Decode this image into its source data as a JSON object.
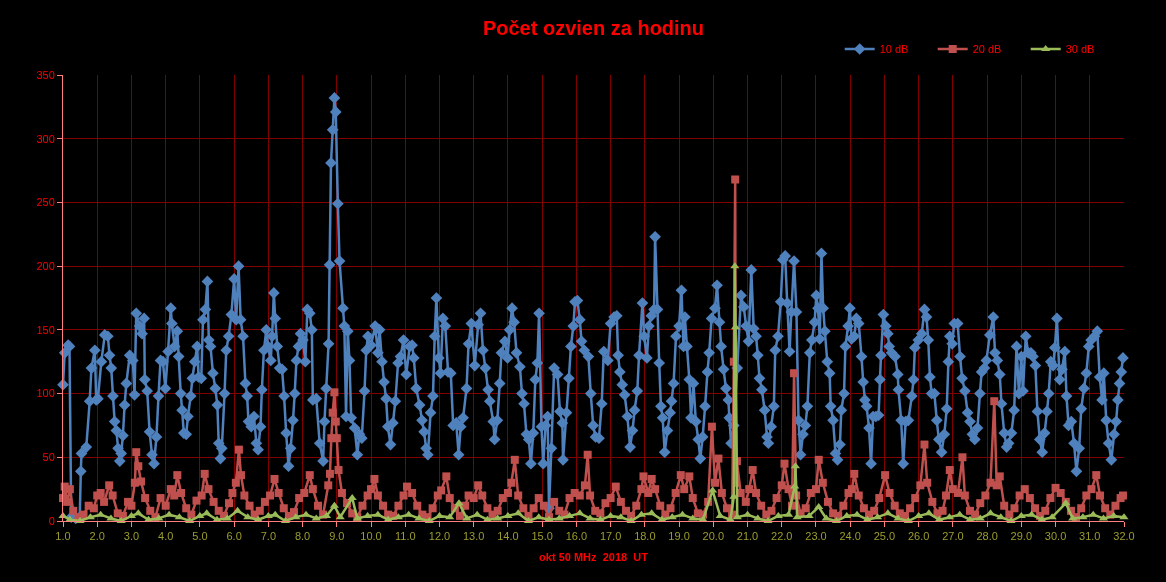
{
  "chart_data": {
    "type": "line",
    "title": "Počet ozvien za hodinu",
    "xlabel": "okt 50 MHz  2018  UT",
    "xlim": [
      1,
      32
    ],
    "xticks": [
      {
        "value": 1,
        "label": "1.0"
      },
      {
        "value": 2,
        "label": "2.0"
      },
      {
        "value": 3,
        "label": "3.0"
      },
      {
        "value": 4,
        "label": "4.0"
      },
      {
        "value": 5,
        "label": "5.0"
      },
      {
        "value": 6,
        "label": "6.0"
      },
      {
        "value": 7,
        "label": "7.0"
      },
      {
        "value": 8,
        "label": "8.0"
      },
      {
        "value": 9,
        "label": "9.0"
      },
      {
        "value": 10,
        "label": "10.0"
      },
      {
        "value": 11,
        "label": "11.0"
      },
      {
        "value": 12,
        "label": "12.0"
      },
      {
        "value": 13,
        "label": "13.0"
      },
      {
        "value": 14,
        "label": "14.0"
      },
      {
        "value": 15,
        "label": "15.0"
      },
      {
        "value": 16,
        "label": "16.0"
      },
      {
        "value": 17,
        "label": "17.0"
      },
      {
        "value": 18,
        "label": "18.0"
      },
      {
        "value": 19,
        "label": "19.0"
      },
      {
        "value": 20,
        "label": "20.0"
      },
      {
        "value": 21,
        "label": "21.0"
      },
      {
        "value": 22,
        "label": "22.0"
      },
      {
        "value": 23,
        "label": "23.0"
      },
      {
        "value": 24,
        "label": "24.0"
      },
      {
        "value": 25,
        "label": "25.0"
      },
      {
        "value": 26,
        "label": "26.0"
      },
      {
        "value": 27,
        "label": "27.0"
      },
      {
        "value": 28,
        "label": "28.0"
      },
      {
        "value": 29,
        "label": "29.0"
      },
      {
        "value": 30,
        "label": "30.0"
      },
      {
        "value": 31,
        "label": "31.0"
      },
      {
        "value": 32,
        "label": "32.0"
      }
    ],
    "ylim": [
      0,
      350
    ],
    "yticks": [
      0,
      50,
      100,
      150,
      200,
      250,
      300,
      350
    ],
    "grid": true,
    "legend": "top right",
    "line_style": "solid",
    "series": [
      {
        "name": "10 dB",
        "color": "#4f81bd",
        "marker": "diamond",
        "x": [
          1.0,
          1.05,
          1.15,
          1.19,
          1.24,
          1.37,
          1.49,
          1.52,
          1.54,
          1.68,
          1.78,
          1.83,
          1.93,
          1.97,
          2.02,
          2.12,
          2.22,
          2.31,
          2.36,
          2.41,
          2.46,
          2.51,
          2.56,
          2.61,
          2.66,
          2.7,
          2.75,
          2.8,
          2.85,
          2.95,
          3.04,
          3.09,
          3.14,
          3.24,
          3.31,
          3.37,
          3.39,
          3.46,
          3.53,
          3.6,
          3.66,
          3.73,
          3.79,
          3.85,
          3.92,
          3.99,
          4.07,
          4.15,
          4.18,
          4.26,
          4.34,
          4.38,
          4.44,
          4.48,
          4.53,
          4.6,
          4.65,
          4.73,
          4.78,
          4.85,
          4.92,
          4.96,
          5.04,
          5.09,
          5.16,
          5.22,
          5.26,
          5.31,
          5.38,
          5.45,
          5.51,
          5.55,
          5.6,
          5.64,
          5.72,
          5.77,
          5.84,
          5.92,
          6.0,
          6.06,
          6.13,
          6.19,
          6.26,
          6.33,
          6.38,
          6.42,
          6.5,
          6.58,
          6.65,
          6.7,
          6.77,
          6.81,
          6.87,
          6.94,
          6.99,
          7.07,
          7.11,
          7.16,
          7.2,
          7.26,
          7.33,
          7.4,
          7.46,
          7.52,
          7.59,
          7.65,
          7.72,
          7.77,
          7.82,
          7.88,
          7.94,
          8.01,
          8.08,
          8.14,
          8.21,
          8.27,
          8.3,
          8.4,
          8.5,
          8.6,
          8.64,
          8.69,
          8.76,
          8.79,
          8.83,
          8.88,
          8.93,
          8.97,
          9.03,
          9.08,
          9.18,
          9.22,
          9.27,
          9.32,
          9.37,
          9.42,
          9.52,
          9.6,
          9.66,
          9.73,
          9.81,
          9.86,
          9.91,
          10.0,
          10.12,
          10.2,
          10.25,
          10.32,
          10.38,
          10.44,
          10.49,
          10.57,
          10.64,
          10.71,
          10.79,
          10.86,
          10.95,
          11.03,
          11.13,
          11.2,
          11.25,
          11.32,
          11.42,
          11.49,
          11.55,
          11.61,
          11.66,
          11.74,
          11.81,
          11.86,
          11.91,
          11.98,
          12.03,
          12.1,
          12.17,
          12.25,
          12.33,
          12.4,
          12.49,
          12.56,
          12.62,
          12.69,
          12.79,
          12.85,
          12.93,
          13.03,
          13.13,
          13.2,
          13.27,
          13.34,
          13.42,
          13.47,
          13.57,
          13.61,
          13.69,
          13.76,
          13.81,
          13.91,
          13.99,
          14.05,
          14.12,
          14.18,
          14.25,
          14.35,
          14.41,
          14.47,
          14.54,
          14.61,
          14.67,
          14.74,
          14.8,
          14.86,
          14.91,
          14.98,
          15.03,
          15.1,
          15.16,
          15.2,
          15.27,
          15.35,
          15.45,
          15.52,
          15.59,
          15.61,
          15.71,
          15.78,
          15.84,
          15.91,
          15.96,
          16.03,
          16.1,
          16.15,
          16.23,
          16.35,
          16.42,
          16.49,
          16.56,
          16.66,
          16.74,
          16.8,
          16.92,
          17.0,
          17.1,
          17.18,
          17.22,
          17.27,
          17.34,
          17.41,
          17.49,
          17.57,
          17.64,
          17.7,
          17.78,
          17.83,
          17.93,
          17.98,
          18.06,
          18.12,
          18.19,
          18.27,
          18.3,
          18.37,
          18.42,
          18.47,
          18.52,
          18.58,
          18.66,
          18.74,
          18.78,
          18.84,
          18.91,
          19.0,
          19.07,
          19.13,
          19.17,
          19.23,
          19.3,
          19.35,
          19.42,
          19.49,
          19.56,
          19.62,
          19.69,
          19.76,
          19.83,
          19.88,
          19.95,
          20.05,
          20.11,
          20.18,
          20.23,
          20.3,
          20.37,
          20.44,
          20.47,
          20.52,
          20.6,
          20.7,
          20.81,
          20.89,
          20.96,
          21.03,
          21.11,
          21.18,
          21.25,
          21.3,
          21.35,
          21.42,
          21.5,
          21.57,
          21.61,
          21.69,
          21.77,
          21.81,
          21.89,
          21.97,
          22.03,
          22.1,
          22.16,
          22.23,
          22.28,
          22.36,
          22.43,
          22.49,
          22.55,
          22.62,
          22.69,
          22.75,
          22.82,
          22.88,
          22.96,
          23.01,
          23.06,
          23.11,
          23.16,
          23.21,
          23.26,
          23.33,
          23.4,
          23.43,
          23.5,
          23.57,
          23.63,
          23.7,
          23.74,
          23.82,
          23.86,
          23.94,
          23.99,
          24.04,
          24.12,
          24.18,
          24.25,
          24.33,
          24.38,
          24.43,
          24.48,
          24.55,
          24.61,
          24.67,
          24.75,
          24.83,
          24.87,
          24.9,
          24.97,
          25.04,
          25.1,
          25.14,
          25.21,
          25.31,
          25.39,
          25.41,
          25.49,
          25.55,
          25.62,
          25.7,
          25.8,
          25.85,
          25.89,
          25.99,
          26.09,
          26.17,
          26.23,
          26.28,
          26.33,
          26.38,
          26.46,
          26.53,
          26.59,
          26.67,
          26.75,
          26.82,
          26.87,
          26.91,
          26.98,
          27.04,
          27.14,
          27.21,
          27.27,
          27.35,
          27.43,
          27.5,
          27.57,
          27.64,
          27.72,
          27.79,
          27.84,
          27.92,
          27.98,
          28.08,
          28.18,
          28.23,
          28.3,
          28.37,
          28.42,
          28.5,
          28.57,
          28.63,
          28.71,
          28.79,
          28.86,
          28.93,
          29.0,
          29.05,
          29.13,
          29.2,
          29.28,
          29.34,
          29.41,
          29.47,
          29.54,
          29.61,
          29.68,
          29.75,
          29.8,
          29.86,
          29.93,
          29.98,
          30.04,
          30.12,
          30.19,
          30.27,
          30.32,
          30.38,
          30.46,
          30.54,
          30.61,
          30.69,
          30.75,
          30.83,
          30.9,
          30.97,
          31.04,
          31.14,
          31.22,
          31.29,
          31.36,
          31.41,
          31.48,
          31.55,
          31.63,
          31.71,
          31.77,
          31.82,
          31.87,
          31.92,
          31.97
        ],
        "values": [
          107,
          132,
          138,
          137,
          3,
          2,
          3,
          39,
          53,
          58,
          94,
          120,
          134,
          95,
          96,
          125,
          146,
          145,
          130,
          120,
          98,
          78,
          71,
          57,
          47,
          53,
          67,
          91,
          108,
          130,
          126,
          99,
          163,
          153,
          147,
          159,
          111,
          102,
          70,
          52,
          45,
          66,
          98,
          126,
          125,
          104,
          133,
          167,
          155,
          137,
          149,
          129,
          100,
          87,
          69,
          68,
          82,
          98,
          112,
          125,
          137,
          113,
          112,
          158,
          166,
          188,
          142,
          137,
          116,
          104,
          91,
          61,
          49,
          57,
          100,
          134,
          145,
          162,
          190,
          158,
          200,
          158,
          145,
          108,
          98,
          78,
          74,
          82,
          61,
          56,
          74,
          103,
          134,
          150,
          137,
          126,
          145,
          179,
          159,
          137,
          120,
          119,
          98,
          69,
          43,
          57,
          79,
          100,
          126,
          137,
          147,
          142,
          125,
          166,
          163,
          150,
          95,
          96,
          61,
          47,
          78,
          104,
          139,
          201,
          281,
          307,
          332,
          321,
          249,
          204,
          167,
          153,
          82,
          149,
          126,
          81,
          73,
          52,
          68,
          65,
          102,
          134,
          145,
          138,
          153,
          132,
          150,
          125,
          109,
          96,
          74,
          60,
          77,
          94,
          124,
          129,
          142,
          115,
          137,
          138,
          128,
          104,
          91,
          79,
          70,
          57,
          52,
          85,
          98,
          145,
          175,
          128,
          116,
          159,
          153,
          117,
          116,
          75,
          77,
          52,
          74,
          81,
          104,
          139,
          155,
          122,
          154,
          163,
          134,
          120,
          103,
          94,
          78,
          64,
          79,
          108,
          132,
          141,
          128,
          150,
          167,
          156,
          132,
          121,
          100,
          92,
          68,
          64,
          45,
          69,
          111,
          124,
          163,
          74,
          45,
          75,
          82,
          10,
          57,
          120,
          115,
          86,
          77,
          48,
          85,
          112,
          137,
          153,
          172,
          173,
          158,
          141,
          134,
          129,
          100,
          75,
          66,
          65,
          92,
          133,
          126,
          155,
          160,
          161,
          130,
          117,
          107,
          99,
          82,
          58,
          71,
          87,
          102,
          130,
          171,
          145,
          128,
          153,
          161,
          166,
          223,
          166,
          124,
          90,
          81,
          54,
          71,
          85,
          94,
          108,
          145,
          153,
          181,
          137,
          160,
          137,
          111,
          81,
          108,
          78,
          64,
          49,
          66,
          90,
          117,
          132,
          159,
          167,
          185,
          156,
          137,
          119,
          104,
          95,
          81,
          61,
          75,
          120,
          177,
          168,
          153,
          141,
          197,
          151,
          145,
          130,
          112,
          103,
          87,
          66,
          61,
          74,
          90,
          134,
          145,
          172,
          205,
          208,
          171,
          133,
          164,
          204,
          164,
          79,
          52,
          68,
          75,
          90,
          132,
          142,
          156,
          177,
          167,
          143,
          210,
          167,
          149,
          125,
          116,
          90,
          79,
          53,
          48,
          60,
          87,
          100,
          137,
          153,
          167,
          143,
          145,
          159,
          155,
          129,
          109,
          95,
          90,
          73,
          45,
          82,
          82,
          83,
          111,
          130,
          162,
          153,
          147,
          137,
          132,
          129,
          115,
          103,
          79,
          45,
          78,
          79,
          98,
          111,
          136,
          142,
          147,
          166,
          160,
          142,
          113,
          100,
          100,
          79,
          64,
          54,
          68,
          88,
          125,
          145,
          139,
          155,
          155,
          129,
          112,
          102,
          85,
          78,
          68,
          64,
          73,
          100,
          117,
          120,
          126,
          146,
          160,
          132,
          126,
          115,
          92,
          69,
          58,
          61,
          69,
          87,
          137,
          100,
          129,
          102,
          145,
          132,
          132,
          129,
          122,
          86,
          64,
          54,
          69,
          86,
          100,
          125,
          122,
          136,
          159,
          111,
          119,
          133,
          98,
          75,
          78,
          61,
          39,
          57,
          88,
          104,
          116,
          137,
          142,
          145,
          149,
          113,
          95,
          116,
          79,
          61,
          48,
          68,
          78,
          95,
          108,
          117,
          128
        ]
      },
      {
        "name": "20 dB",
        "color": "#c0504d",
        "marker": "square",
        "x": [
          1.0,
          1.05,
          1.12,
          1.2,
          1.3,
          1.45,
          1.6,
          1.75,
          1.9,
          2.0,
          2.1,
          2.2,
          2.35,
          2.45,
          2.6,
          2.75,
          2.9,
          3.0,
          3.1,
          3.14,
          3.2,
          3.28,
          3.4,
          3.55,
          3.7,
          3.85,
          4.0,
          4.15,
          4.25,
          4.34,
          4.45,
          4.6,
          4.75,
          4.9,
          5.05,
          5.14,
          5.25,
          5.4,
          5.55,
          5.7,
          5.85,
          5.95,
          6.05,
          6.14,
          6.2,
          6.3,
          6.45,
          6.6,
          6.75,
          6.9,
          7.05,
          7.18,
          7.3,
          7.45,
          7.6,
          7.75,
          7.9,
          8.05,
          8.21,
          8.3,
          8.45,
          8.6,
          8.75,
          8.8,
          8.84,
          8.88,
          8.93,
          8.97,
          9.0,
          9.05,
          9.15,
          9.3,
          9.45,
          9.6,
          9.75,
          9.9,
          10.0,
          10.1,
          10.2,
          10.35,
          10.5,
          10.65,
          10.8,
          10.95,
          11.05,
          11.2,
          11.35,
          11.5,
          11.65,
          11.8,
          11.95,
          12.05,
          12.2,
          12.3,
          12.45,
          12.6,
          12.75,
          12.85,
          13.0,
          13.13,
          13.25,
          13.4,
          13.55,
          13.7,
          13.85,
          14.0,
          14.1,
          14.2,
          14.3,
          14.45,
          14.6,
          14.75,
          14.9,
          15.05,
          15.2,
          15.35,
          15.5,
          15.65,
          15.8,
          15.95,
          16.1,
          16.25,
          16.33,
          16.4,
          16.55,
          16.7,
          16.85,
          17.0,
          17.15,
          17.3,
          17.45,
          17.6,
          17.75,
          17.9,
          17.96,
          18.1,
          18.2,
          18.3,
          18.45,
          18.6,
          18.75,
          18.9,
          19.05,
          19.15,
          19.3,
          19.4,
          19.55,
          19.7,
          19.85,
          19.96,
          20.05,
          20.15,
          20.25,
          20.4,
          20.55,
          20.6,
          20.64,
          20.66,
          20.69,
          20.8,
          20.95,
          21.05,
          21.15,
          21.25,
          21.4,
          21.55,
          21.7,
          21.85,
          22.0,
          22.08,
          22.2,
          22.3,
          22.36,
          22.42,
          22.55,
          22.7,
          22.85,
          23.0,
          23.08,
          23.2,
          23.35,
          23.5,
          23.65,
          23.8,
          23.95,
          24.05,
          24.12,
          24.25,
          24.4,
          24.55,
          24.7,
          24.85,
          25.02,
          25.15,
          25.3,
          25.45,
          25.6,
          25.75,
          25.9,
          26.05,
          26.17,
          26.25,
          26.4,
          26.55,
          26.7,
          26.8,
          26.91,
          27.0,
          27.15,
          27.28,
          27.35,
          27.5,
          27.65,
          27.8,
          27.95,
          28.1,
          28.21,
          28.28,
          28.37,
          28.5,
          28.65,
          28.8,
          28.95,
          29.1,
          29.25,
          29.4,
          29.55,
          29.7,
          29.85,
          30.0,
          30.15,
          30.3,
          30.45,
          30.6,
          30.75,
          30.9,
          31.05,
          31.19,
          31.3,
          31.45,
          31.6,
          31.75,
          31.9,
          31.97
        ],
        "values": [
          18,
          27,
          15,
          25,
          8,
          3,
          5,
          12,
          10,
          20,
          22,
          15,
          28,
          20,
          6,
          4,
          15,
          12,
          30,
          54,
          43,
          31,
          18,
          8,
          3,
          18,
          12,
          25,
          20,
          36,
          22,
          10,
          5,
          16,
          20,
          37,
          25,
          15,
          8,
          4,
          14,
          22,
          30,
          56,
          36,
          20,
          12,
          5,
          8,
          15,
          20,
          33,
          22,
          10,
          4,
          7,
          18,
          22,
          36,
          25,
          12,
          5,
          28,
          37,
          65,
          85,
          101,
          78,
          65,
          40,
          22,
          14,
          6,
          3,
          12,
          20,
          25,
          33,
          20,
          12,
          5,
          4,
          12,
          20,
          27,
          22,
          12,
          5,
          3,
          10,
          20,
          24,
          35,
          18,
          10,
          4,
          12,
          20,
          18,
          28,
          20,
          10,
          5,
          8,
          18,
          22,
          30,
          48,
          20,
          10,
          4,
          10,
          18,
          12,
          3,
          15,
          8,
          5,
          18,
          22,
          20,
          28,
          52,
          20,
          8,
          6,
          14,
          18,
          27,
          15,
          8,
          4,
          12,
          25,
          35,
          22,
          33,
          25,
          12,
          5,
          10,
          22,
          36,
          25,
          35,
          18,
          6,
          5,
          15,
          74,
          30,
          49,
          22,
          10,
          5,
          125,
          268,
          30,
          47,
          22,
          15,
          25,
          40,
          22,
          12,
          5,
          8,
          18,
          28,
          45,
          25,
          12,
          116,
          20,
          6,
          10,
          22,
          25,
          48,
          30,
          15,
          6,
          4,
          12,
          22,
          25,
          37,
          20,
          10,
          5,
          8,
          18,
          36,
          22,
          12,
          6,
          4,
          10,
          18,
          28,
          60,
          30,
          15,
          6,
          8,
          20,
          40,
          25,
          22,
          50,
          20,
          8,
          5,
          14,
          20,
          30,
          94,
          28,
          35,
          12,
          5,
          10,
          20,
          25,
          18,
          10,
          4,
          8,
          18,
          26,
          22,
          15,
          8,
          3,
          10,
          20,
          25,
          36,
          20,
          10,
          5,
          12,
          18,
          20
        ]
      },
      {
        "name": "30 dB",
        "color": "#9bbb59",
        "marker": "triangle",
        "x": [
          1.0,
          1.2,
          1.5,
          1.8,
          2.1,
          2.4,
          2.7,
          3.0,
          3.2,
          3.5,
          3.8,
          4.1,
          4.4,
          4.7,
          5.0,
          5.2,
          5.5,
          5.8,
          6.1,
          6.4,
          6.7,
          7.0,
          7.2,
          7.5,
          7.8,
          8.1,
          8.4,
          8.7,
          8.93,
          9.1,
          9.45,
          9.6,
          9.9,
          10.2,
          10.5,
          10.8,
          11.1,
          11.4,
          11.7,
          12.0,
          12.3,
          12.57,
          12.8,
          13.1,
          13.4,
          13.7,
          14.0,
          14.3,
          14.6,
          14.9,
          15.2,
          15.5,
          15.8,
          16.1,
          16.4,
          16.7,
          17.0,
          17.3,
          17.6,
          17.9,
          18.2,
          18.5,
          18.8,
          19.1,
          19.4,
          19.7,
          19.98,
          20.2,
          20.5,
          20.6,
          20.63,
          20.65,
          20.7,
          21.0,
          21.3,
          21.6,
          21.9,
          22.2,
          22.38,
          22.4,
          22.45,
          22.8,
          23.08,
          23.3,
          23.6,
          23.9,
          24.2,
          24.5,
          24.8,
          25.1,
          25.4,
          25.7,
          26.0,
          26.3,
          26.6,
          26.9,
          27.2,
          27.5,
          27.8,
          28.1,
          28.4,
          28.7,
          29.0,
          29.3,
          29.6,
          29.9,
          30.3,
          30.5,
          30.8,
          31.1,
          31.4,
          31.7,
          32.0
        ],
        "values": [
          4,
          1,
          0,
          3,
          5,
          2,
          0,
          4,
          6,
          1,
          2,
          5,
          3,
          0,
          4,
          6,
          1,
          2,
          8,
          3,
          1,
          4,
          5,
          0,
          3,
          5,
          2,
          4,
          12,
          3,
          18,
          2,
          4,
          5,
          1,
          3,
          5,
          2,
          0,
          4,
          3,
          14,
          2,
          5,
          1,
          2,
          4,
          6,
          0,
          3,
          1,
          2,
          4,
          6,
          2,
          1,
          4,
          3,
          0,
          5,
          6,
          1,
          3,
          5,
          2,
          1,
          24,
          4,
          1,
          19,
          200,
          152,
          3,
          5,
          2,
          0,
          4,
          5,
          27,
          43,
          3,
          4,
          11,
          2,
          0,
          4,
          5,
          1,
          3,
          6,
          2,
          0,
          4,
          6,
          1,
          3,
          5,
          1,
          2,
          6,
          3,
          0,
          4,
          5,
          1,
          3,
          14,
          2,
          3,
          5,
          2,
          4,
          3
        ]
      }
    ]
  }
}
